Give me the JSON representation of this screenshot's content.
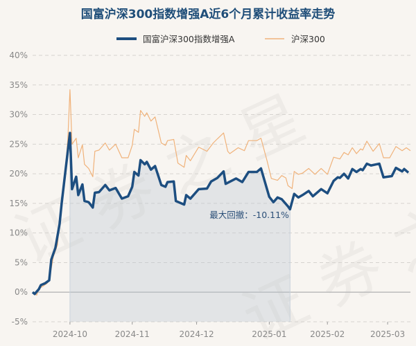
{
  "chart_data": {
    "type": "line",
    "title": "国富沪深300指数增强A近6个月累计收益率走势",
    "watermark": "证券之星",
    "ylim": [
      -5,
      40
    ],
    "yticks": [
      40,
      35,
      30,
      25,
      20,
      15,
      10,
      5,
      0,
      -5
    ],
    "ytick_labels": [
      "40%",
      "35%",
      "30%",
      "25%",
      "20%",
      "15%",
      "10%",
      "5%",
      "0%",
      "-5%"
    ],
    "xlim": [
      0,
      182
    ],
    "xticks": [
      {
        "label": "2024-10",
        "x": 18
      },
      {
        "label": "2024-11",
        "x": 48
      },
      {
        "label": "2024-12",
        "x": 79
      },
      {
        "label": "2025-01",
        "x": 114
      },
      {
        "label": "2025-02",
        "x": 142
      },
      {
        "label": "2025-03",
        "x": 171
      }
    ],
    "grid": true,
    "legend_position": "top-center",
    "max_drawdown": {
      "label": "最大回撤：-10.11%",
      "peak_x": 18,
      "trough_x": 124
    },
    "series": [
      {
        "name": "国富沪深300指数增强A",
        "color": "#1d4e80",
        "points": [
          [
            0,
            0
          ],
          [
            1,
            -0.3
          ],
          [
            3,
            0.5
          ],
          [
            4,
            1.2
          ],
          [
            6,
            1.5
          ],
          [
            8,
            2.0
          ],
          [
            9,
            5.5
          ],
          [
            11,
            7.5
          ],
          [
            13,
            11.5
          ],
          [
            14,
            15
          ],
          [
            16,
            21
          ],
          [
            18,
            26.9
          ],
          [
            19,
            17.4
          ],
          [
            21,
            19.5
          ],
          [
            22,
            16.4
          ],
          [
            24,
            18.2
          ],
          [
            25,
            15.4
          ],
          [
            27,
            15.2
          ],
          [
            29,
            14.3
          ],
          [
            30,
            16.8
          ],
          [
            32,
            16.9
          ],
          [
            35,
            18.1
          ],
          [
            37,
            17.2
          ],
          [
            40,
            17.6
          ],
          [
            43,
            15.8
          ],
          [
            46,
            16.2
          ],
          [
            48,
            17.8
          ],
          [
            49,
            20.3
          ],
          [
            51,
            19.7
          ],
          [
            52,
            22.3
          ],
          [
            54,
            21.6
          ],
          [
            55,
            22.0
          ],
          [
            57,
            20.7
          ],
          [
            59,
            21.3
          ],
          [
            62,
            18.1
          ],
          [
            64,
            17.8
          ],
          [
            65,
            18.6
          ],
          [
            68,
            18.7
          ],
          [
            69,
            15.4
          ],
          [
            73,
            14.8
          ],
          [
            74,
            16.4
          ],
          [
            76,
            15.8
          ],
          [
            80,
            17.4
          ],
          [
            84,
            17.5
          ],
          [
            86,
            18.7
          ],
          [
            89,
            19.3
          ],
          [
            92,
            20.4
          ],
          [
            93,
            18.3
          ],
          [
            98,
            19.2
          ],
          [
            101,
            18.6
          ],
          [
            104,
            20.3
          ],
          [
            108,
            20.3
          ],
          [
            110,
            20.9
          ],
          [
            114,
            16.1
          ],
          [
            116,
            15.2
          ],
          [
            118,
            16.0
          ],
          [
            120,
            15.7
          ],
          [
            123,
            14.5
          ],
          [
            124,
            14.0
          ],
          [
            126,
            16.6
          ],
          [
            128,
            16.0
          ],
          [
            130,
            16.4
          ],
          [
            133,
            17.1
          ],
          [
            135,
            16.2
          ],
          [
            139,
            17.4
          ],
          [
            142,
            16.7
          ],
          [
            145,
            18.8
          ],
          [
            147,
            19.4
          ],
          [
            148,
            19.3
          ],
          [
            150,
            20.0
          ],
          [
            152,
            19.2
          ],
          [
            154,
            20.8
          ],
          [
            156,
            20.3
          ],
          [
            158,
            20.8
          ],
          [
            159,
            20.6
          ],
          [
            161,
            21.7
          ],
          [
            163,
            21.4
          ],
          [
            167,
            21.7
          ],
          [
            169,
            19.4
          ],
          [
            173,
            19.6
          ],
          [
            175,
            21.0
          ],
          [
            178,
            20.4
          ],
          [
            179,
            20.8
          ],
          [
            181,
            20.2
          ]
        ]
      },
      {
        "name": "沪深300",
        "color": "#f0b27a",
        "points": [
          [
            0,
            0
          ],
          [
            2,
            -0.5
          ],
          [
            3,
            0.6
          ],
          [
            5,
            1.0
          ],
          [
            7,
            1.5
          ],
          [
            8,
            2.0
          ],
          [
            10,
            6
          ],
          [
            12,
            8
          ],
          [
            13,
            12
          ],
          [
            15,
            17
          ],
          [
            17,
            26
          ],
          [
            18,
            34.2
          ],
          [
            19,
            25.0
          ],
          [
            21,
            26.0
          ],
          [
            22,
            22.7
          ],
          [
            24,
            24.9
          ],
          [
            25,
            21.6
          ],
          [
            27,
            20.9
          ],
          [
            29,
            19.5
          ],
          [
            30,
            23.8
          ],
          [
            32,
            24.0
          ],
          [
            35,
            25.2
          ],
          [
            37,
            24.0
          ],
          [
            40,
            25.0
          ],
          [
            43,
            22.7
          ],
          [
            46,
            22.7
          ],
          [
            48,
            24.8
          ],
          [
            49,
            27.5
          ],
          [
            51,
            27.0
          ],
          [
            52,
            30.7
          ],
          [
            54,
            29.7
          ],
          [
            55,
            30.3
          ],
          [
            57,
            28.9
          ],
          [
            59,
            29.6
          ],
          [
            62,
            25.2
          ],
          [
            64,
            24.8
          ],
          [
            65,
            25.6
          ],
          [
            68,
            25.8
          ],
          [
            70,
            21.8
          ],
          [
            73,
            21.1
          ],
          [
            74,
            23.1
          ],
          [
            76,
            22.2
          ],
          [
            80,
            24.5
          ],
          [
            84,
            23.8
          ],
          [
            87,
            25.2
          ],
          [
            89,
            25.9
          ],
          [
            92,
            26.9
          ],
          [
            94,
            23.8
          ],
          [
            95,
            23.4
          ],
          [
            99,
            24.4
          ],
          [
            102,
            23.9
          ],
          [
            104,
            25.6
          ],
          [
            108,
            25.6
          ],
          [
            110,
            26.0
          ],
          [
            113,
            22.1
          ],
          [
            115,
            19.2
          ],
          [
            118,
            18.9
          ],
          [
            120,
            19.7
          ],
          [
            122,
            19.3
          ],
          [
            123,
            18.0
          ],
          [
            125,
            17.5
          ],
          [
            126,
            20.4
          ],
          [
            128,
            19.9
          ],
          [
            130,
            20.1
          ],
          [
            133,
            20.9
          ],
          [
            136,
            19.9
          ],
          [
            139,
            20.9
          ],
          [
            142,
            19.9
          ],
          [
            145,
            22.8
          ],
          [
            148,
            22.5
          ],
          [
            150,
            23.6
          ],
          [
            152,
            23.2
          ],
          [
            154,
            24.4
          ],
          [
            156,
            23.4
          ],
          [
            158,
            24.2
          ],
          [
            159,
            24.0
          ],
          [
            161,
            25.5
          ],
          [
            164,
            23.8
          ],
          [
            167,
            25.1
          ],
          [
            169,
            22.7
          ],
          [
            172,
            22.7
          ],
          [
            175,
            24.6
          ],
          [
            178,
            23.9
          ],
          [
            180,
            24.4
          ],
          [
            182,
            23.9
          ]
        ]
      }
    ]
  }
}
